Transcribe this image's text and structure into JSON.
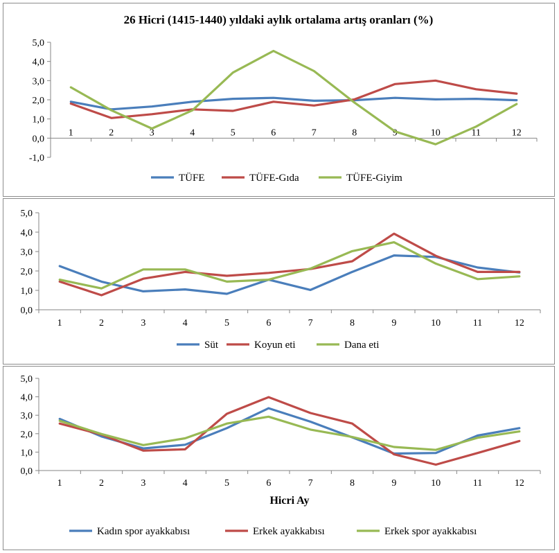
{
  "chart_data": [
    {
      "type": "line",
      "title": "26 Hicri (1415-1440) yıldaki aylık ortalama artış oranları (%)",
      "xlabel": "",
      "ylabel": "",
      "categories": [
        "1",
        "2",
        "3",
        "4",
        "5",
        "6",
        "7",
        "8",
        "9",
        "10",
        "11",
        "12"
      ],
      "ylim": [
        -1,
        5
      ],
      "yticks": [
        "-1,0",
        "0,0",
        "1,0",
        "2,0",
        "3,0",
        "4,0",
        "5,0"
      ],
      "legend_position": "bottom",
      "series": [
        {
          "name": "TÜFE",
          "color": "#4a7ebb",
          "values": [
            1.9,
            1.5,
            1.65,
            1.9,
            2.05,
            2.1,
            1.95,
            1.98,
            2.1,
            2.02,
            2.05,
            1.98
          ]
        },
        {
          "name": "TÜFE-Gıda",
          "color": "#be4b48",
          "values": [
            1.8,
            1.05,
            1.25,
            1.5,
            1.42,
            1.9,
            1.7,
            2.02,
            2.82,
            3.0,
            2.55,
            2.32
          ]
        },
        {
          "name": "TÜFE-Giyim",
          "color": "#98b954",
          "values": [
            2.65,
            1.45,
            0.5,
            1.45,
            3.42,
            4.55,
            3.5,
            1.85,
            0.35,
            -0.32,
            0.6,
            1.78
          ]
        }
      ]
    },
    {
      "type": "line",
      "title": "",
      "xlabel": "",
      "ylabel": "",
      "categories": [
        "1",
        "2",
        "3",
        "4",
        "5",
        "6",
        "7",
        "8",
        "9",
        "10",
        "11",
        "12"
      ],
      "ylim": [
        0,
        5
      ],
      "yticks": [
        "0,0",
        "1,0",
        "2,0",
        "3,0",
        "4,0",
        "5,0"
      ],
      "legend_position": "bottom",
      "series": [
        {
          "name": "Süt",
          "color": "#4a7ebb",
          "values": [
            2.25,
            1.45,
            0.95,
            1.05,
            0.82,
            1.55,
            1.02,
            1.95,
            2.8,
            2.72,
            2.18,
            1.92
          ]
        },
        {
          "name": "Koyun eti",
          "color": "#be4b48",
          "values": [
            1.45,
            0.75,
            1.6,
            1.95,
            1.75,
            1.9,
            2.1,
            2.5,
            3.92,
            2.78,
            1.95,
            1.95
          ]
        },
        {
          "name": "Dana eti",
          "color": "#98b954",
          "values": [
            1.55,
            1.1,
            2.08,
            2.08,
            1.45,
            1.55,
            2.12,
            3.02,
            3.48,
            2.38,
            1.58,
            1.72
          ]
        }
      ]
    },
    {
      "type": "line",
      "title": "",
      "xlabel": "Hicri Ay",
      "ylabel": "",
      "categories": [
        "1",
        "2",
        "3",
        "4",
        "5",
        "6",
        "7",
        "8",
        "9",
        "10",
        "11",
        "12"
      ],
      "ylim": [
        0,
        5
      ],
      "yticks": [
        "0,0",
        "1,0",
        "2,0",
        "3,0",
        "4,0",
        "5,0"
      ],
      "legend_position": "bottom",
      "series": [
        {
          "name": "Kadın spor ayakkabısı",
          "color": "#4a7ebb",
          "values": [
            2.8,
            1.85,
            1.2,
            1.4,
            2.3,
            3.38,
            2.65,
            1.8,
            0.92,
            0.95,
            1.9,
            2.3
          ]
        },
        {
          "name": "Erkek ayakkabısı",
          "color": "#be4b48",
          "values": [
            2.55,
            1.95,
            1.08,
            1.15,
            3.08,
            3.98,
            3.12,
            2.55,
            0.88,
            0.32,
            0.95,
            1.6
          ]
        },
        {
          "name": "Erkek spor ayakkabısı",
          "color": "#98b954",
          "values": [
            2.7,
            1.98,
            1.38,
            1.75,
            2.55,
            2.92,
            2.22,
            1.82,
            1.28,
            1.12,
            1.78,
            2.12
          ]
        }
      ]
    }
  ]
}
